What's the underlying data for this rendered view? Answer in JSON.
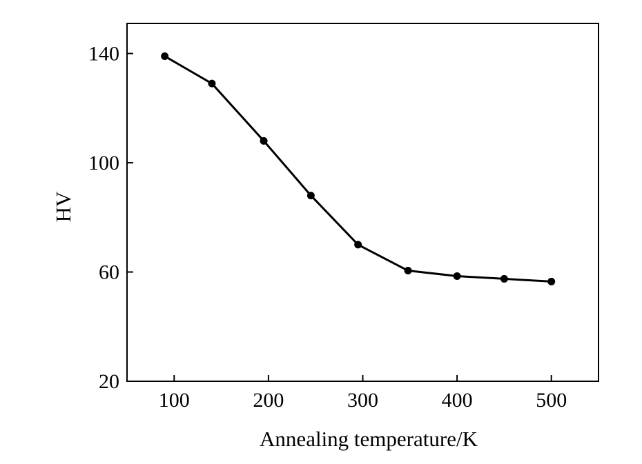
{
  "chart_data": {
    "type": "line",
    "title": "",
    "xlabel": "Annealing temperature/K",
    "ylabel": "HV",
    "xlim": [
      50,
      550
    ],
    "ylim": [
      20,
      151
    ],
    "xticks": [
      100,
      200,
      300,
      400,
      500
    ],
    "yticks": [
      20,
      60,
      100,
      140
    ],
    "xtick_labels": [
      "100",
      "200",
      "300",
      "400",
      "500"
    ],
    "ytick_labels": [
      "20",
      "60",
      "100",
      "140"
    ],
    "grid": false,
    "legend": "none",
    "series": [
      {
        "x": [
          90,
          140,
          195,
          245,
          295,
          348,
          400,
          450,
          500
        ],
        "y": [
          139,
          129,
          108,
          88,
          70,
          60.5,
          58.5,
          57.5,
          56.5
        ]
      }
    ],
    "colors": {
      "line": "#000000",
      "marker": "#000000",
      "axis": "#000000"
    }
  }
}
